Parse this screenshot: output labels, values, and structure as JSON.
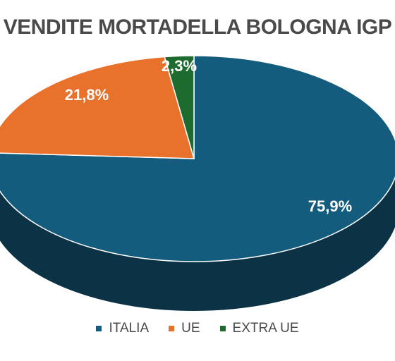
{
  "chart_data": {
    "type": "pie",
    "title": "VENDITE MORTADELLA BOLOGNA IGP",
    "categories": [
      "ITALIA",
      "UE",
      "EXTRA UE"
    ],
    "values": [
      75.9,
      21.8,
      2.3
    ],
    "labels": [
      "75,9%",
      "21,8%",
      "2,3%"
    ],
    "colors": [
      "#145c7d",
      "#e8722c",
      "#1e6b30"
    ],
    "legend": "bottom"
  }
}
